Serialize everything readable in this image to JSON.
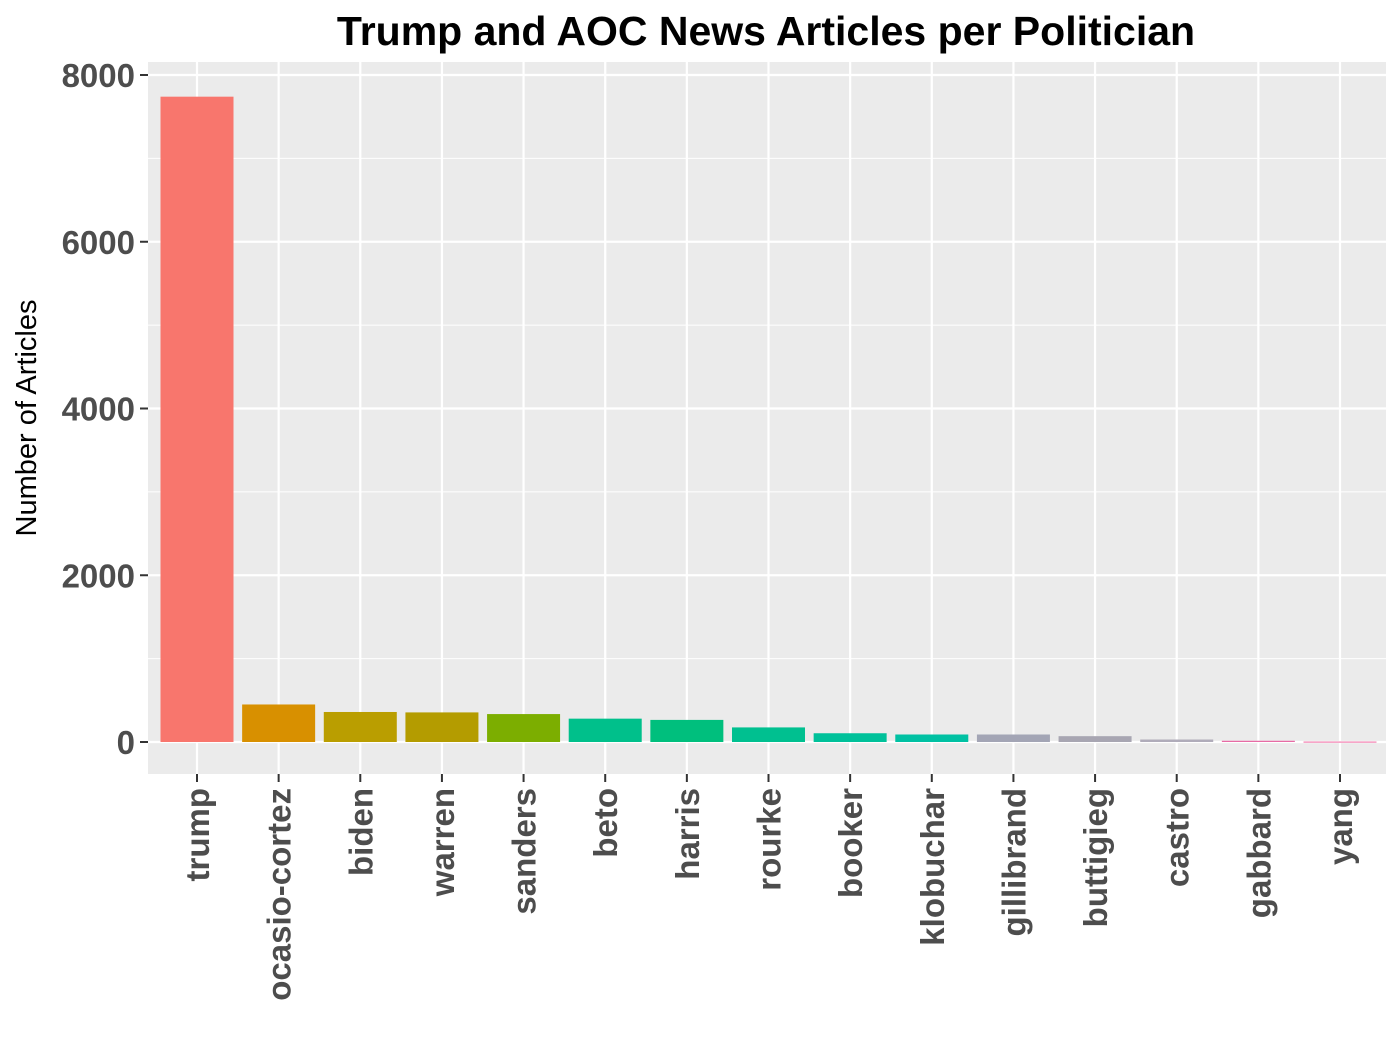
{
  "chart_data": {
    "type": "bar",
    "title": "Trump and AOC News Articles per Politician",
    "xlabel": "",
    "ylabel": "Number of Articles",
    "categories": [
      "trump",
      "ocasio-cortez",
      "biden",
      "warren",
      "sanders",
      "beto",
      "harris",
      "rourke",
      "booker",
      "klobuchar",
      "gillibrand",
      "buttigieg",
      "castro",
      "gabbard",
      "yang"
    ],
    "values": [
      7740,
      450,
      360,
      355,
      335,
      280,
      265,
      175,
      105,
      90,
      90,
      70,
      30,
      15,
      5
    ],
    "colors": [
      "#F8766D",
      "#D89000",
      "#BA9E00",
      "#B49C00",
      "#7CAE00",
      "#00C08B",
      "#00BF7D",
      "#00C090",
      "#00C19A",
      "#00C1A3",
      "#A3A5B5",
      "#A8A6B2",
      "#B0ACBA",
      "#E76BA5",
      "#F066A0"
    ],
    "y_ticks": [
      0,
      2000,
      4000,
      6000,
      8000
    ],
    "ylim": [
      -400,
      8150
    ],
    "grid": true,
    "legend": "none",
    "panel_background": "#EBEBEB",
    "gridline_color": "#FFFFFF",
    "tick_label_color": "#4D4D4D"
  }
}
